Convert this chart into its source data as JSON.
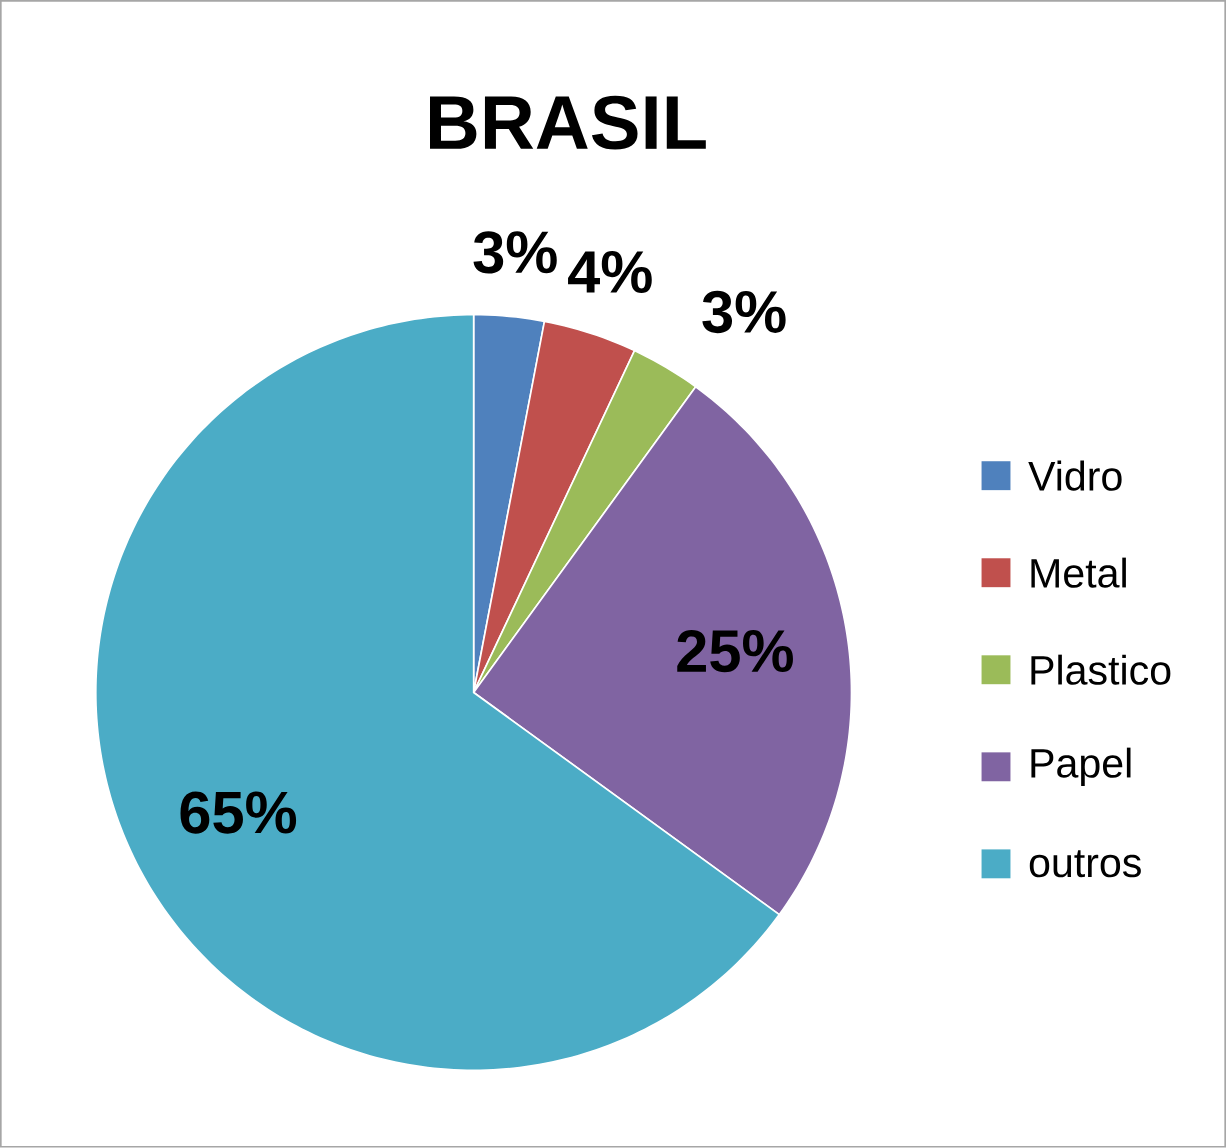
{
  "chart_data": {
    "type": "pie",
    "title": "BRASIL",
    "categories": [
      "Vidro",
      "Metal",
      "Plastico",
      "Papel",
      "outros"
    ],
    "values": [
      3,
      4,
      3,
      25,
      65
    ],
    "value_labels": [
      "3%",
      "4%",
      "3%",
      "25%",
      "65%"
    ],
    "colors": [
      "#4f81bd",
      "#c0504d",
      "#9bbb59",
      "#8064a2",
      "#4bacc6"
    ],
    "legend": "right"
  }
}
